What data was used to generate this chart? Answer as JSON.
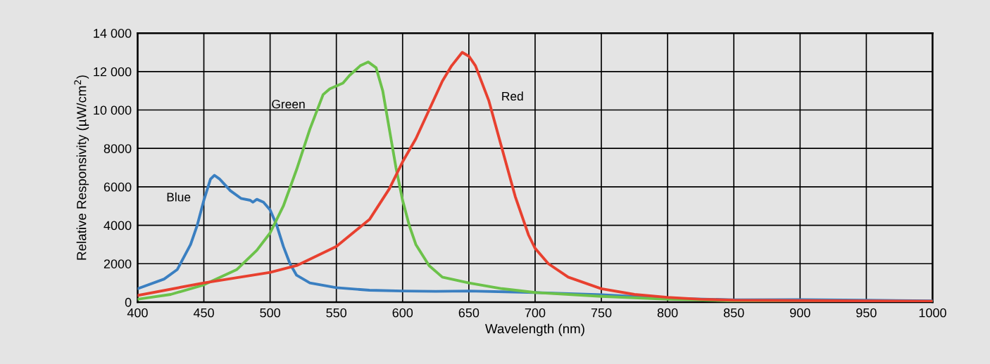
{
  "chart_data": {
    "type": "line",
    "xlabel": "Wavelength (nm)",
    "ylabel": "Relative Responsivity (µW/cm$^{2}$)",
    "xlim": [
      400,
      1000
    ],
    "xticks": [
      400,
      450,
      500,
      550,
      600,
      650,
      700,
      750,
      800,
      850,
      900,
      950,
      1000
    ],
    "ylim": [
      0,
      14000
    ],
    "yticks": [
      0,
      2000,
      4000,
      6000,
      8000,
      {
        "value": 10000,
        "label": "10 000"
      },
      {
        "value": 12000,
        "label": "12 000"
      },
      {
        "value": 14000,
        "label": "14 000"
      }
    ],
    "grid": true,
    "legend": false,
    "marker": "none",
    "line_style": "solid",
    "series": [
      {
        "name": "Blue",
        "color": "#3a7fc1",
        "x": [
          400,
          420,
          430,
          440,
          445,
          450,
          455,
          458,
          462,
          470,
          478,
          485,
          487,
          490,
          495,
          500,
          505,
          510,
          515,
          520,
          530,
          550,
          575,
          600,
          625,
          650,
          700,
          750,
          800,
          850,
          900,
          950,
          1000
        ],
        "values": [
          700,
          1200,
          1700,
          3000,
          4000,
          5300,
          6400,
          6600,
          6400,
          5800,
          5400,
          5300,
          5200,
          5350,
          5200,
          4800,
          4000,
          2900,
          2000,
          1400,
          1000,
          750,
          620,
          580,
          560,
          580,
          500,
          380,
          200,
          120,
          130,
          100,
          60
        ]
      },
      {
        "name": "Green",
        "color": "#6cc24a",
        "x": [
          400,
          425,
          450,
          475,
          490,
          500,
          510,
          520,
          530,
          540,
          545,
          555,
          560,
          568,
          574,
          580,
          585,
          590,
          595,
          600,
          605,
          610,
          620,
          630,
          650,
          675,
          700,
          750,
          800,
          850,
          900,
          1000
        ],
        "values": [
          150,
          400,
          900,
          1700,
          2700,
          3600,
          5000,
          6900,
          9000,
          10800,
          11100,
          11400,
          11800,
          12300,
          12500,
          12200,
          11000,
          9000,
          7000,
          5300,
          4000,
          3000,
          1900,
          1300,
          1000,
          700,
          500,
          300,
          150,
          60,
          30,
          20
        ]
      },
      {
        "name": "Red",
        "color": "#e8402f",
        "x": [
          400,
          450,
          500,
          520,
          550,
          575,
          590,
          600,
          610,
          620,
          630,
          637,
          645,
          650,
          655,
          665,
          675,
          685,
          695,
          700,
          710,
          725,
          750,
          775,
          800,
          825,
          850,
          900,
          1000
        ],
        "values": [
          350,
          1000,
          1550,
          1900,
          2900,
          4300,
          5900,
          7300,
          8500,
          10000,
          11500,
          12300,
          13000,
          12800,
          12300,
          10500,
          8000,
          5500,
          3500,
          2800,
          2000,
          1300,
          700,
          400,
          250,
          150,
          100,
          80,
          50
        ]
      }
    ]
  }
}
